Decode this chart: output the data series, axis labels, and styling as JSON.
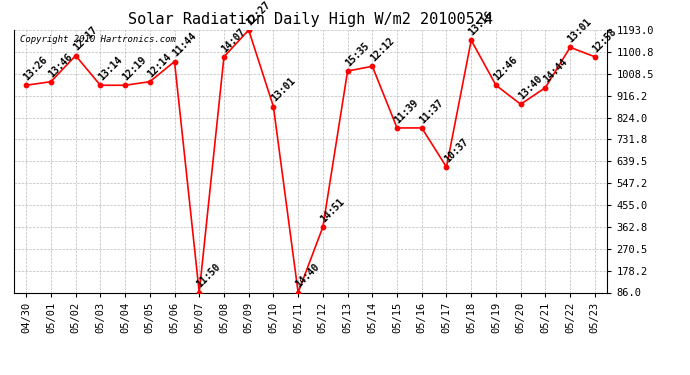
{
  "title": "Solar Radiation Daily High W/m2 20100524",
  "copyright": "Copyright 2010 Hartronics.com",
  "dates": [
    "04/30",
    "05/01",
    "05/02",
    "05/03",
    "05/04",
    "05/05",
    "05/06",
    "05/07",
    "05/08",
    "05/09",
    "05/10",
    "05/11",
    "05/12",
    "05/13",
    "05/14",
    "05/15",
    "05/16",
    "05/17",
    "05/18",
    "05/19",
    "05/20",
    "05/21",
    "05/22",
    "05/23"
  ],
  "values": [
    960,
    975,
    1085,
    960,
    960,
    975,
    1060,
    86,
    1080,
    1193,
    870,
    86,
    362,
    1020,
    1040,
    780,
    780,
    615,
    1150,
    960,
    880,
    950,
    1120,
    1080
  ],
  "labels": [
    "13:26",
    "13:46",
    "12:17",
    "13:14",
    "12:19",
    "12:14",
    "11:44",
    "11:50",
    "14:07",
    "12:27",
    "13:01",
    "14:40",
    "14:51",
    "15:35",
    "12:12",
    "11:39",
    "11:37",
    "10:37",
    "13:16",
    "12:46",
    "13:40",
    "14:44",
    "13:01",
    "12:58"
  ],
  "ylim_min": 86.0,
  "ylim_max": 1193.0,
  "yticks": [
    86.0,
    178.2,
    270.5,
    362.8,
    455.0,
    547.2,
    639.5,
    731.8,
    824.0,
    916.2,
    1008.5,
    1100.8,
    1193.0
  ],
  "line_color": "#FF0000",
  "bg_color": "#FFFFFF",
  "grid_color": "#AAAAAA",
  "title_fontsize": 11,
  "label_fontsize": 7,
  "tick_fontsize": 7.5
}
